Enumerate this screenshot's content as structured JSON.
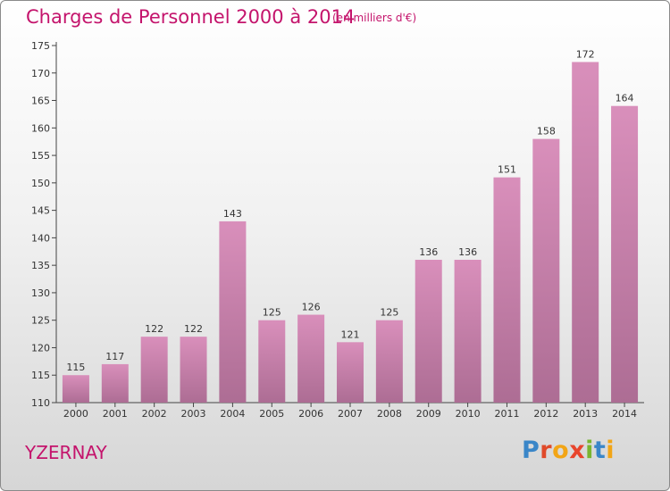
{
  "header": {
    "title": "Charges de Personnel 2000 à 2014",
    "subtitle": "(en milliers d'€)"
  },
  "footer": {
    "town": "YZERNAY",
    "logo_letters": [
      {
        "char": "P",
        "color": "#3a86c8"
      },
      {
        "char": "r",
        "color": "#e04a2a"
      },
      {
        "char": "o",
        "color": "#f2a516"
      },
      {
        "char": "x",
        "color": "#e8452c"
      },
      {
        "char": "i",
        "color": "#7ab530"
      },
      {
        "char": "t",
        "color": "#3a86c8"
      },
      {
        "char": "i",
        "color": "#f2a516"
      }
    ]
  },
  "colors": {
    "bar": "#d98fbb",
    "bar_dark": "#ad6d94",
    "accent": "#c4146c"
  },
  "chart_data": {
    "type": "bar",
    "title": "Charges de Personnel 2000 à 2014",
    "subtitle": "(en milliers d'€)",
    "categories": [
      "2000",
      "2001",
      "2002",
      "2003",
      "2004",
      "2005",
      "2006",
      "2007",
      "2008",
      "2009",
      "2010",
      "2011",
      "2012",
      "2013",
      "2014"
    ],
    "values": [
      115,
      117,
      122,
      122,
      143,
      125,
      126,
      121,
      125,
      136,
      136,
      151,
      158,
      172,
      164
    ],
    "ylim": [
      110,
      175
    ],
    "yticks": [
      110,
      115,
      120,
      125,
      130,
      135,
      140,
      145,
      150,
      155,
      160,
      165,
      170,
      175
    ],
    "grid": false,
    "data_labels": true
  }
}
